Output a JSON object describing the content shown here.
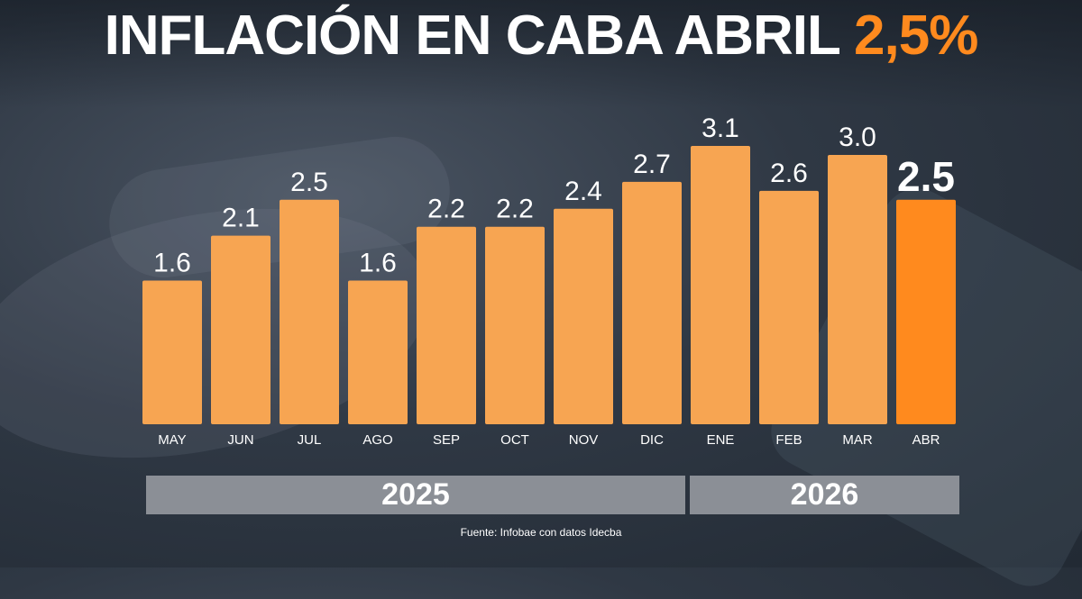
{
  "header": {
    "title_main": "INFLACIÓN EN CABA ABRIL ",
    "title_highlight": "2,5%"
  },
  "chart_data": {
    "type": "bar",
    "categories": [
      "MAY",
      "JUN",
      "JUL",
      "AGO",
      "SEP",
      "OCT",
      "NOV",
      "DIC",
      "ENE",
      "FEB",
      "MAR",
      "ABR"
    ],
    "values": [
      1.6,
      2.1,
      2.5,
      1.6,
      2.2,
      2.2,
      2.4,
      2.7,
      3.1,
      2.6,
      3.0,
      2.5
    ],
    "data_labels": [
      "1.6",
      "2.1",
      "2.5",
      "1.6",
      "2.2",
      "2.2",
      "2.4",
      "2.7",
      "3.1",
      "2.6",
      "3.0",
      "2.5"
    ],
    "highlight_index": 11,
    "ylim": [
      0,
      3.1
    ],
    "title": "INFLACIÓN EN CABA ABRIL 2,5%",
    "xlabel": "",
    "ylabel": "",
    "grid": false,
    "colors": {
      "bar": "#f7a552",
      "highlight": "#ff8a1e",
      "label": "#ffffff"
    }
  },
  "years": [
    {
      "label": "2025"
    },
    {
      "label": "2026"
    }
  ],
  "source": "Fuente: Infobae con datos Idecba"
}
